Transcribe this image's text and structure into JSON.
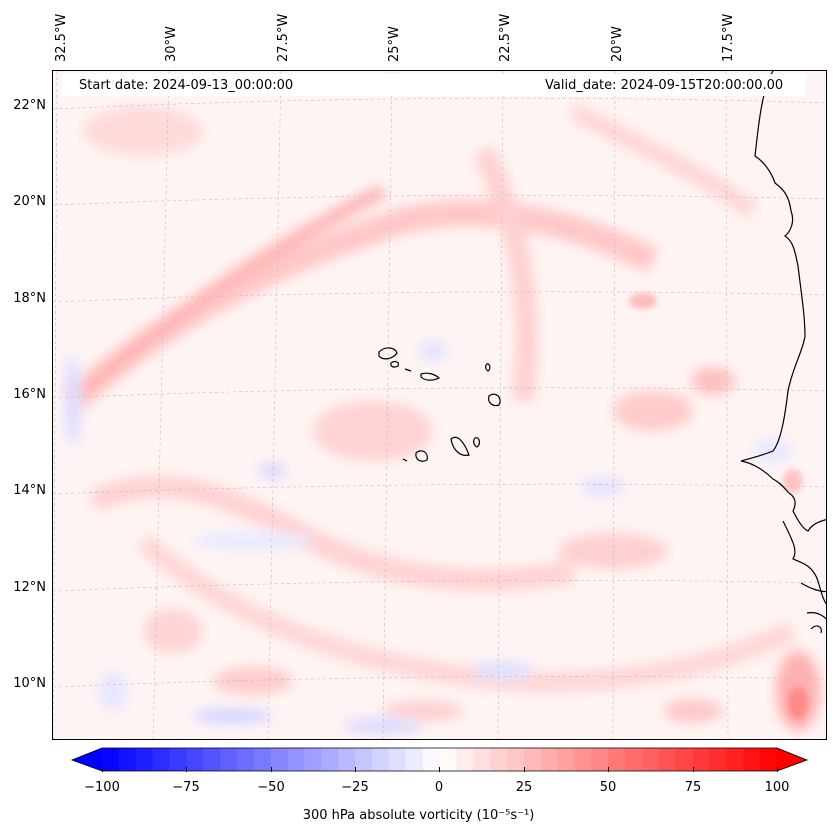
{
  "map": {
    "start_date_text": "Start date: 2024-09-13_00:00:00",
    "valid_date_text": "Valid_date: 2024-09-15T20:00:00.00",
    "lon_labels": [
      "32.5°W",
      "30°W",
      "27.5°W",
      "25°W",
      "22.5°W",
      "20°W",
      "17.5°W"
    ],
    "lat_labels": [
      "22°N",
      "20°N",
      "18°N",
      "16°N",
      "14°N",
      "12°N",
      "10°N"
    ],
    "coastline_color": "#000000",
    "gridline_color": "#bdbdbd"
  },
  "colorbar": {
    "label_text": "300 hPa absolute vorticity (10⁻⁵s⁻¹)",
    "tick_labels": [
      "−100",
      "−75",
      "−50",
      "−25",
      "0",
      "25",
      "50",
      "75",
      "100"
    ],
    "vmin": -100,
    "vmax": 100,
    "colormap": "bwr",
    "low_color": "#0000ff",
    "mid_color": "#ffffff",
    "high_color": "#ff0000",
    "extend": "both"
  }
}
